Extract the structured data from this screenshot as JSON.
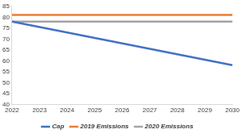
{
  "chart_data": {
    "type": "line",
    "categories": [
      "2022",
      "2023",
      "2024",
      "2025",
      "2026",
      "2027",
      "2028",
      "2029",
      "2030"
    ],
    "series": [
      {
        "name": "Cap",
        "color": "#4472c4",
        "values": [
          78,
          75.5,
          73,
          70.5,
          68,
          65.5,
          63,
          60.5,
          58
        ]
      },
      {
        "name": "2019 Emissions",
        "color": "#ed7d31",
        "values": [
          81,
          81,
          81,
          81,
          81,
          81,
          81,
          81,
          81
        ]
      },
      {
        "name": "2020 Emissions",
        "color": "#a5a5a5",
        "values": [
          78,
          78,
          78,
          78,
          78,
          78,
          78,
          78,
          78
        ]
      }
    ],
    "ylim": [
      40,
      85
    ],
    "yticks": [
      40,
      45,
      50,
      55,
      60,
      65,
      70,
      75,
      80,
      85
    ],
    "grid": false,
    "legend": "bottom"
  }
}
